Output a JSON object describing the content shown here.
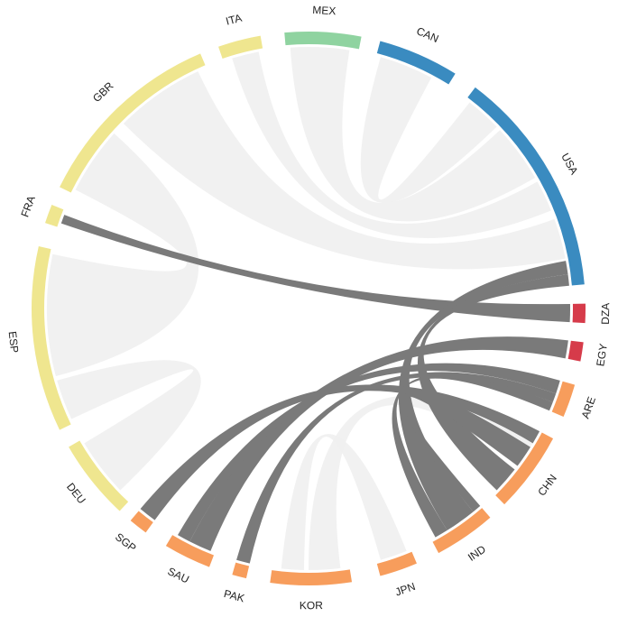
{
  "nodes": [
    {
      "label": "ITA",
      "color": "#efe68f"
    },
    {
      "label": "MEX",
      "color": "#8fd3a0"
    },
    {
      "label": "CAN",
      "color": "#3a8bc0"
    },
    {
      "label": "USA",
      "color": "#3a8bc0"
    },
    {
      "label": "DZA",
      "color": "#d63b4a"
    },
    {
      "label": "EGY",
      "color": "#d63b4a"
    },
    {
      "label": "ARE",
      "color": "#f79d5c"
    },
    {
      "label": "CHN",
      "color": "#f79d5c"
    },
    {
      "label": "IND",
      "color": "#f79d5c"
    },
    {
      "label": "JPN",
      "color": "#f79d5c"
    },
    {
      "label": "KOR",
      "color": "#f79d5c"
    },
    {
      "label": "PAK",
      "color": "#f79d5c"
    },
    {
      "label": "SAU",
      "color": "#f79d5c"
    },
    {
      "label": "SGP",
      "color": "#f79d5c"
    },
    {
      "label": "DEU",
      "color": "#efe68f"
    },
    {
      "label": "ESP",
      "color": "#efe68f"
    },
    {
      "label": "FRA",
      "color": "#efe68f"
    },
    {
      "label": "GBR",
      "color": "#efe68f"
    }
  ]
}
